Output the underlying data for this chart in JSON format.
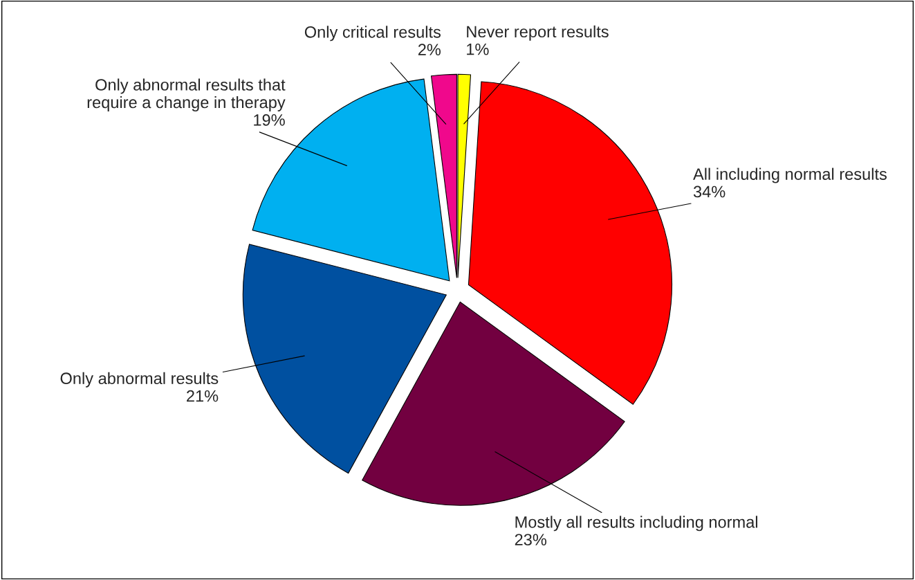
{
  "chart_data": {
    "type": "pie",
    "categories": [
      "Never report results",
      "All including normal results",
      "Mostly all results including normal",
      "Only abnormal results",
      "Only abnormal results that\nrequire a change in therapy",
      "Only critical results"
    ],
    "values": [
      1,
      34,
      23,
      21,
      19,
      2
    ],
    "value_labels": [
      "1%",
      "34%",
      "23%",
      "21%",
      "19%",
      "2%"
    ],
    "colors": [
      "#ffff00",
      "#ff0000",
      "#720040",
      "#0050a0",
      "#00b0f0",
      "#f0088c"
    ],
    "legend": false
  }
}
